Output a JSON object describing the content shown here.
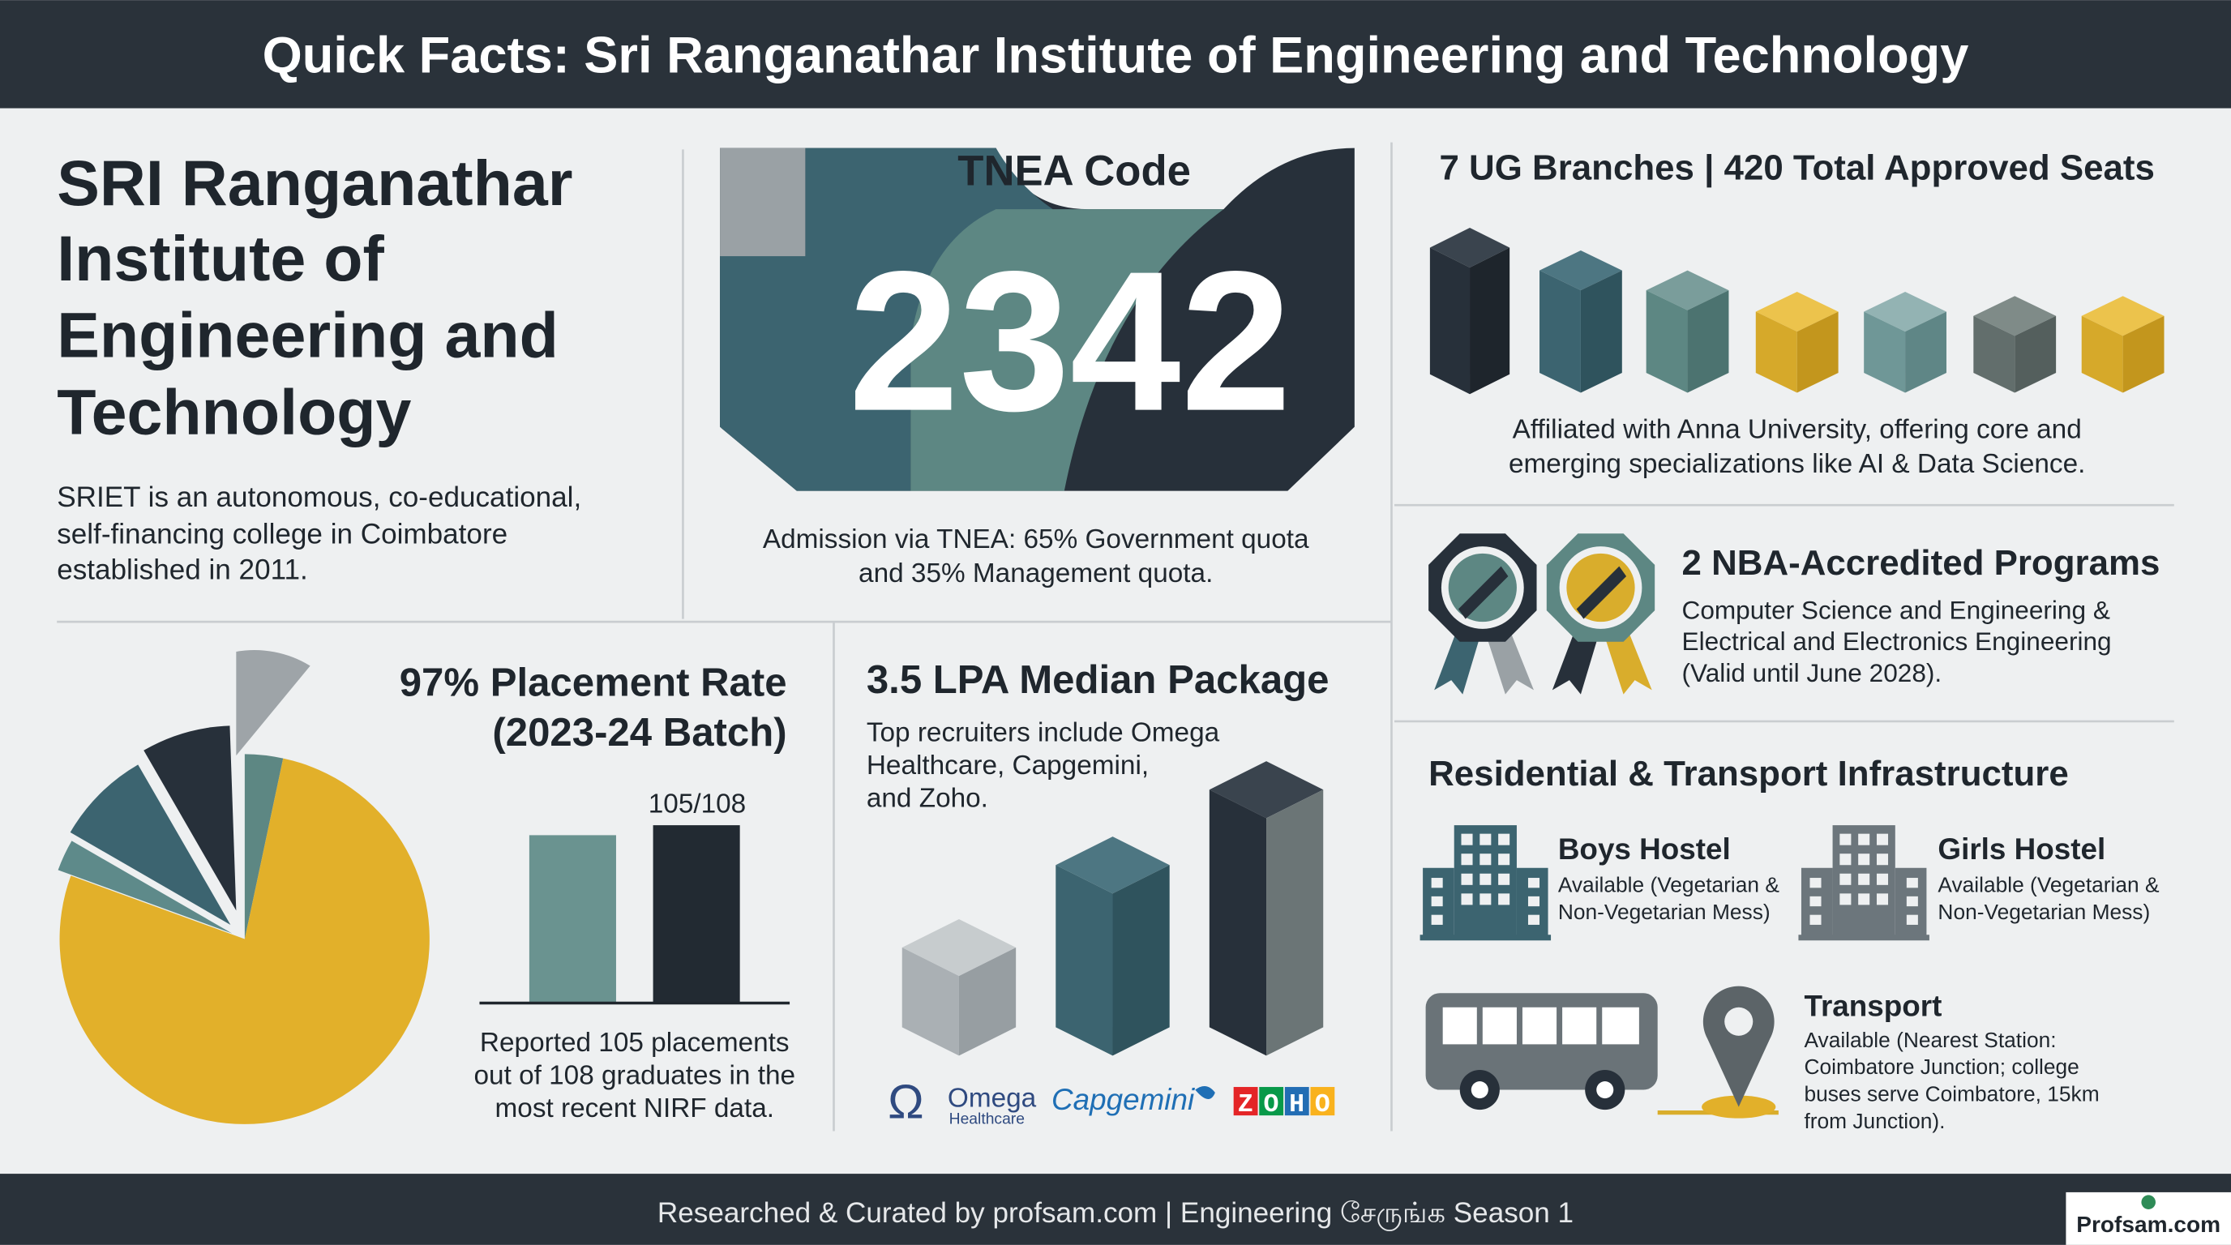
{
  "header": {
    "title": "Quick Facts: Sri Ranganathar Institute of Engineering and Technology"
  },
  "college": {
    "name_lines": [
      "SRI Ranganathar",
      "Institute of",
      "Engineering and",
      "Technology"
    ],
    "description_lines": [
      "SRIET is an autonomous, co-educational,",
      "self-financing college in Coimbatore",
      "established in 2011."
    ]
  },
  "tnea": {
    "title": "TNEA Code",
    "code": "2342",
    "caption_lines": [
      "Admission via TNEA: 65% Government quota",
      "and 35% Management quota."
    ]
  },
  "branches": {
    "title": "7 UG Branches | 420 Total Approved Seats",
    "caption_lines": [
      "Affiliated with Anna University, offering core and",
      "emerging specializations like AI & Data Science."
    ]
  },
  "accreditation": {
    "title": "2 NBA-Accredited Programs",
    "text_lines": [
      "Computer Science and Engineering &",
      "Electrical and Electronics Engineering",
      "(Valid until June 2028)."
    ]
  },
  "placement": {
    "title_lines": [
      "97% Placement Rate",
      "(2023-24 Batch)"
    ],
    "bar_label": "105/108",
    "caption_lines": [
      "Reported 105 placements",
      "out of 108 graduates in the",
      "most recent NIRF data."
    ]
  },
  "package": {
    "title": "3.5 LPA Median Package",
    "text_lines": [
      "Top recruiters include Omega",
      "Healthcare, Capgemini,",
      "and Zoho."
    ],
    "logos": {
      "omega_symbol": "Ω",
      "omega": "Omega",
      "omega_sub": "Healthcare",
      "capgemini": "Capgemini",
      "zoho": "ZOHO"
    }
  },
  "infrastructure": {
    "title": "Residential & Transport Infrastructure",
    "facilities": [
      {
        "name": "Boys Hostel",
        "text_lines": [
          "Available (Vegetarian &",
          "Non-Vegetarian Mess)"
        ]
      },
      {
        "name": "Girls Hostel",
        "text_lines": [
          "Available (Vegetarian &",
          "Non-Vegetarian Mess)"
        ]
      },
      {
        "name": "Transport",
        "text_lines": [
          "Available (Nearest Station:",
          "Coimbatore Junction; college",
          "buses serve Coimbatore, 15km",
          "from Junction)."
        ]
      }
    ]
  },
  "footer": {
    "text": "Researched & Curated by profsam.com | Engineering சேருங்க Season 1",
    "brand": "Profsam.com"
  }
}
